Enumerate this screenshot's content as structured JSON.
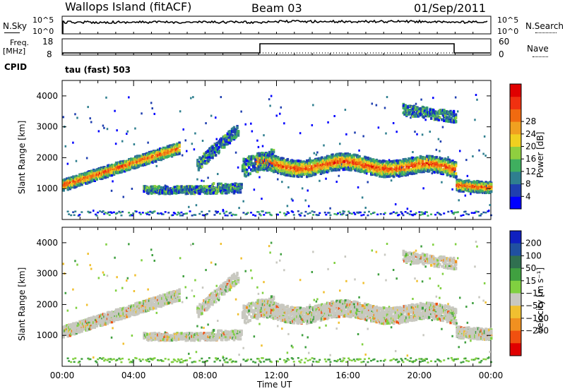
{
  "header": {
    "station": "Wallops Island (fitACF)",
    "beam": "Beam 03",
    "date": "01/Sep/2011"
  },
  "top_panels": {
    "nsky": {
      "label": "N.Sky",
      "tick_top": "10^5",
      "tick_bottom": "10^0"
    },
    "nsearch": {
      "label": "N.Search",
      "tick_top": "10^5",
      "tick_bottom": "10^0"
    },
    "freq": {
      "label_line1": "Freq.",
      "label_line2": "[MHz]",
      "tick_top": "18",
      "tick_bottom": "8"
    },
    "nave": {
      "label": "Nave",
      "tick_top": "60",
      "tick_bottom": "0"
    },
    "cpid": {
      "label": "CPID",
      "value": "tau (fast) 503"
    }
  },
  "chart_data": [
    {
      "type": "heatmap",
      "title": "",
      "ylabel": "Slant Range [km]",
      "xlabel": "",
      "x_range_hours": [
        0,
        24
      ],
      "ylim": [
        0,
        4500
      ],
      "yticks": [
        "1000",
        "2000",
        "3000",
        "4000"
      ],
      "colorbar": {
        "label": "Power [dB]",
        "ticks": [
          "4",
          "8",
          "12",
          "16",
          "20",
          "24",
          "28"
        ],
        "colors": [
          "#0000ff",
          "#1f3fb0",
          "#2f7f8f",
          "#3faf5f",
          "#8fcf3f",
          "#f0d020",
          "#f0a020",
          "#f06a10",
          "#f03010",
          "#e00000"
        ]
      },
      "bands": [
        {
          "t": [
            0,
            6.5
          ],
          "range": [
            1100,
            2500
          ],
          "slope": "rising",
          "power": "strong"
        },
        {
          "t": [
            10.8,
            22
          ],
          "range": [
            1300,
            2200
          ],
          "power": "strong"
        },
        {
          "t": [
            19,
            22
          ],
          "range": [
            3300,
            3900
          ],
          "power": "weak"
        },
        {
          "t": [
            22,
            24
          ],
          "range": [
            900,
            1400
          ],
          "power": "strong"
        }
      ]
    },
    {
      "type": "heatmap",
      "title": "",
      "ylabel": "Slant Range [km]",
      "xlabel": "Time UT",
      "x_range_hours": [
        0,
        24
      ],
      "ylim": [
        0,
        4500
      ],
      "yticks": [
        "1000",
        "2000",
        "3000",
        "4000"
      ],
      "xticks": [
        "00:00",
        "04:00",
        "08:00",
        "12:00",
        "16:00",
        "20:00",
        "00:00"
      ],
      "colorbar": {
        "label": "Velocity [m s⁻¹]",
        "ticks": [
          "200",
          "100",
          "50",
          "15",
          "−15",
          "−50",
          "−100",
          "−200"
        ],
        "colors": [
          "#1020c0",
          "#2050a0",
          "#307050",
          "#40a040",
          "#80d040",
          "#c8c8c0",
          "#f0c030",
          "#f09020",
          "#f05010",
          "#e00000"
        ]
      }
    }
  ]
}
